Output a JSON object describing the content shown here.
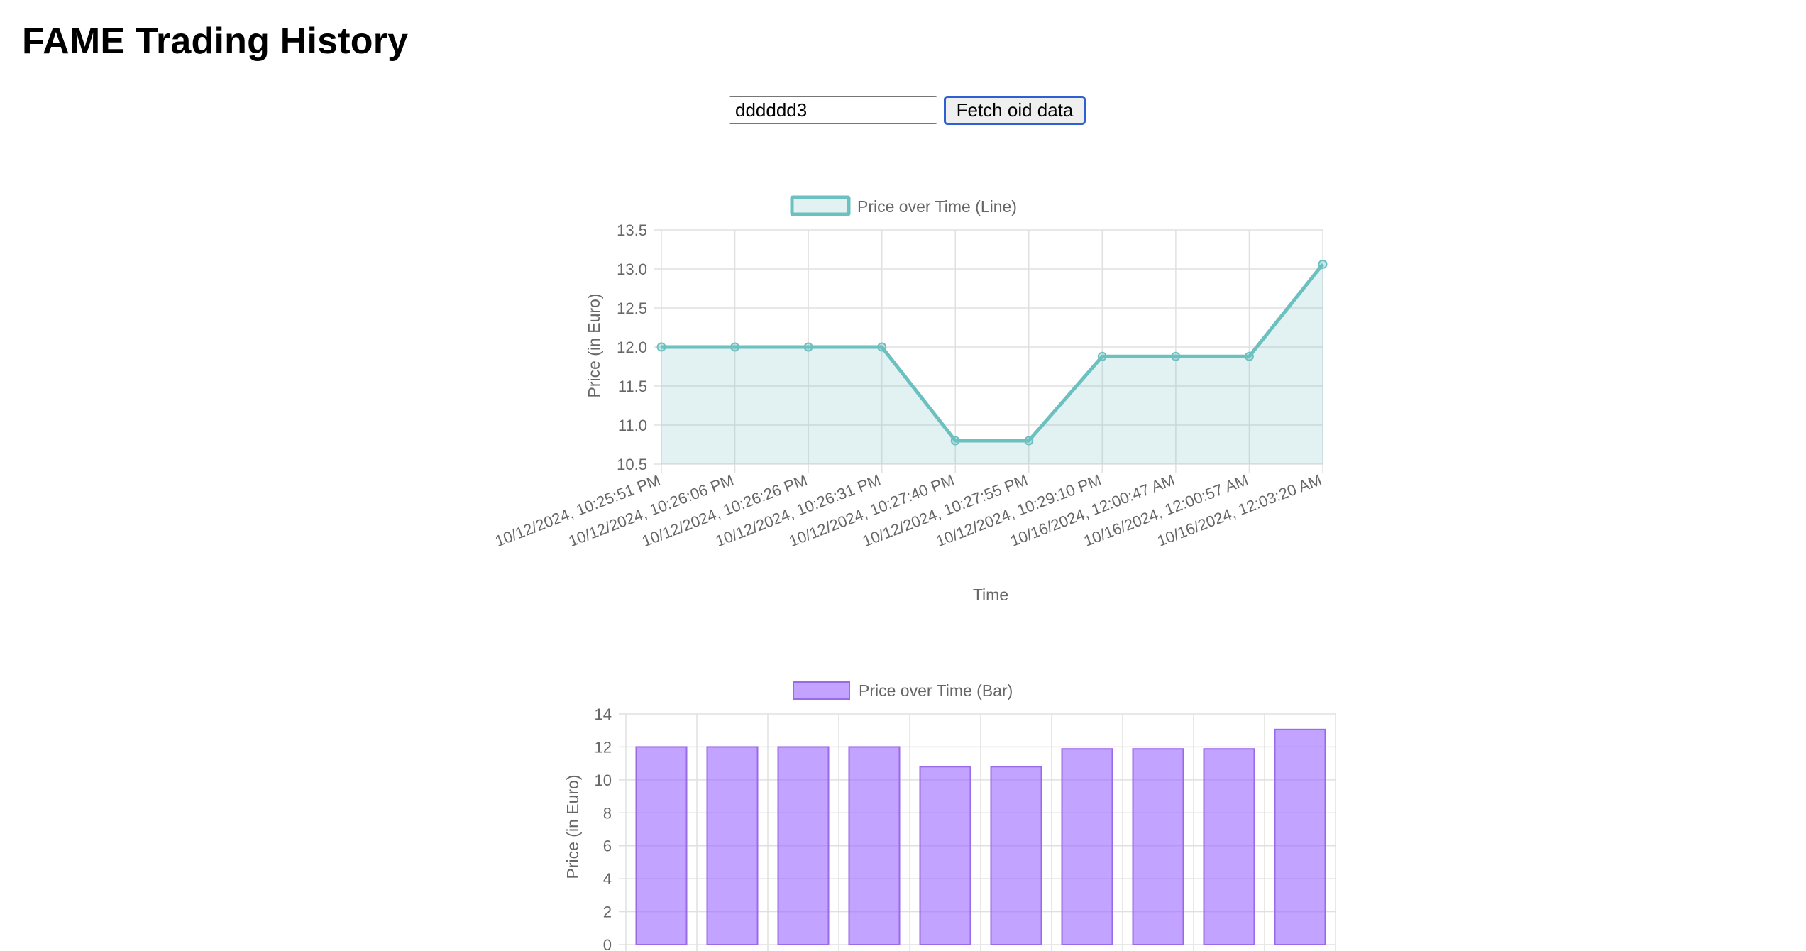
{
  "page": {
    "title": "FAME Trading History",
    "oid_input_value": "dddddd3",
    "fetch_button_label": "Fetch oid data"
  },
  "colors": {
    "line_border": "#6cc0bf",
    "line_fill": "rgba(108,192,191,0.2)",
    "bar_border": "#9a6ae8",
    "bar_fill": "rgba(153,102,255,0.6)",
    "grid": "#e0e0e0",
    "text": "#666666"
  },
  "chart_data": [
    {
      "type": "line",
      "legend": "Price over Time (Line)",
      "legend_position": "top",
      "xlabel": "Time",
      "ylabel": "Price (in Euro)",
      "categories": [
        "10/12/2024, 10:25:51 PM",
        "10/12/2024, 10:26:06 PM",
        "10/12/2024, 10:26:26 PM",
        "10/12/2024, 10:26:31 PM",
        "10/12/2024, 10:27:40 PM",
        "10/12/2024, 10:27:55 PM",
        "10/12/2024, 10:29:10 PM",
        "10/16/2024, 12:00:47 AM",
        "10/16/2024, 12:00:57 AM",
        "10/16/2024, 12:03:20 AM"
      ],
      "values": [
        12.0,
        12.0,
        12.0,
        12.0,
        10.8,
        10.8,
        11.88,
        11.88,
        11.88,
        13.06
      ],
      "ylim": [
        10.5,
        13.5
      ],
      "yticks": [
        "10.5",
        "11.0",
        "11.5",
        "12.0",
        "12.5",
        "13.0",
        "13.5"
      ],
      "grid": true,
      "filled": true
    },
    {
      "type": "bar",
      "legend": "Price over Time (Bar)",
      "legend_position": "top",
      "ylabel": "Price (in Euro)",
      "values": [
        12.0,
        12.0,
        12.0,
        12.0,
        10.8,
        10.8,
        11.88,
        11.88,
        11.88,
        13.06
      ],
      "ylim": [
        0,
        14
      ],
      "yticks": [
        "0",
        "2",
        "4",
        "6",
        "8",
        "10",
        "12",
        "14"
      ],
      "grid": true
    }
  ]
}
